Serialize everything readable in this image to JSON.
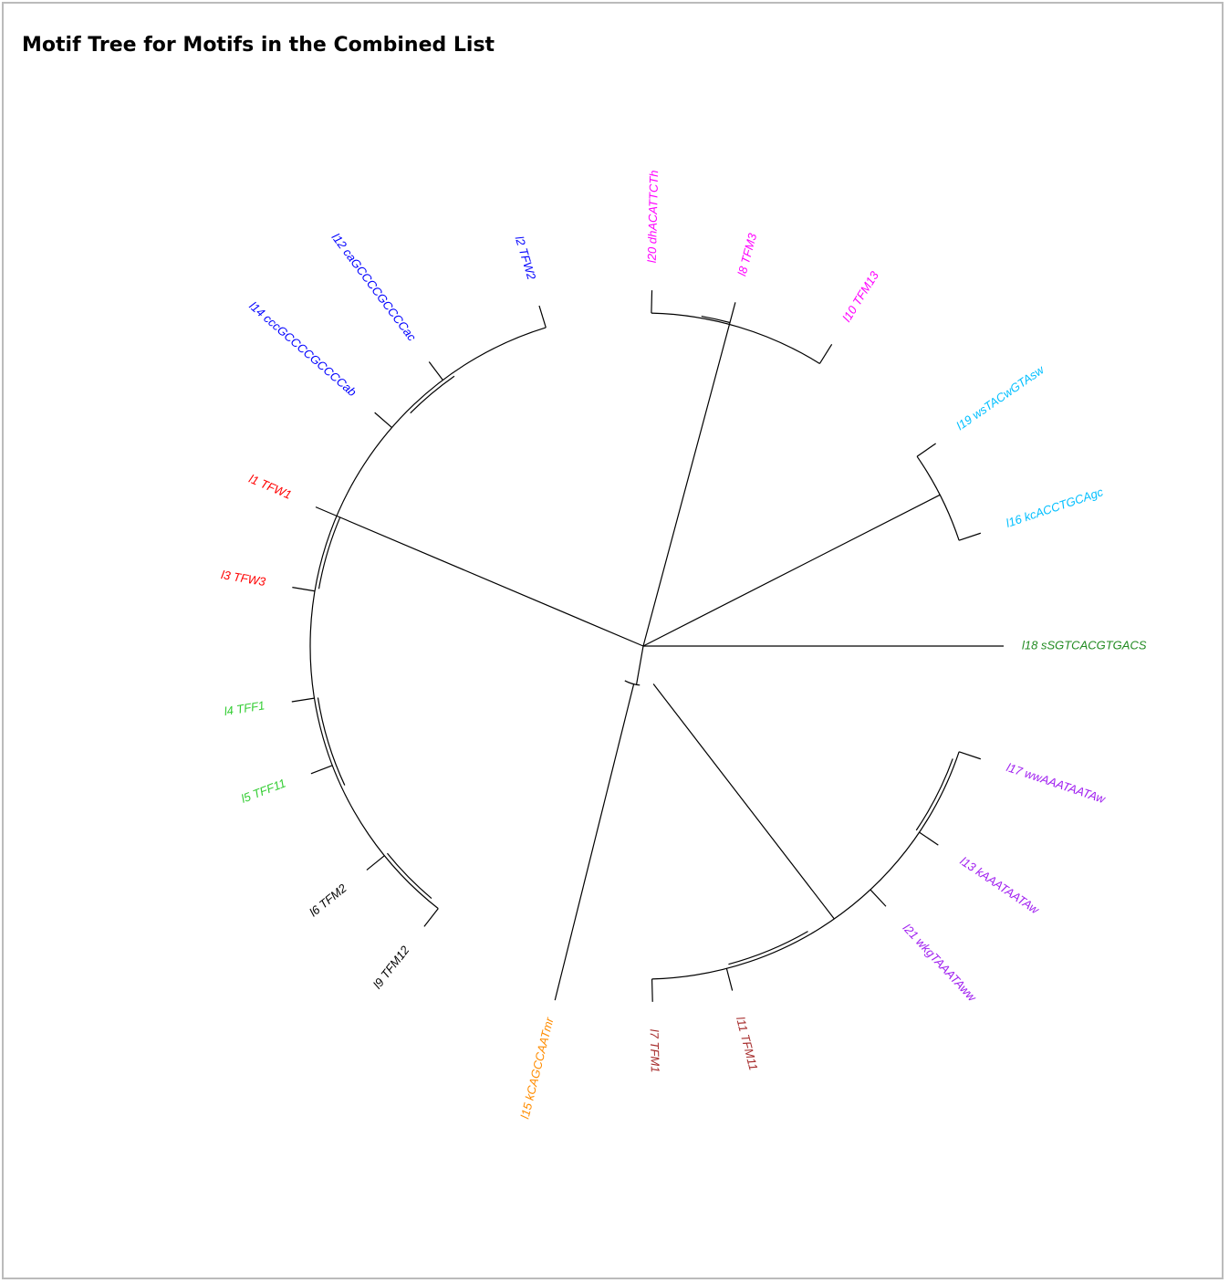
{
  "page": {
    "title": "Motif Tree for Motifs in the Combined List"
  },
  "tree": {
    "branch_color": "#000000",
    "groups": [
      {
        "id": "g1",
        "color": "#ff00ff",
        "leaves": [
          {
            "id": "l20",
            "label": "l20 dhACATTCTh"
          },
          {
            "id": "l8",
            "label": "l8 TFM3"
          },
          {
            "id": "l10",
            "label": "l10 TFM13"
          }
        ]
      },
      {
        "id": "g2",
        "color": "#00bfff",
        "leaves": [
          {
            "id": "l19",
            "label": "l19 wsTACwGTAsw"
          },
          {
            "id": "l16",
            "label": "l16 kcACCTGCAgc"
          }
        ]
      },
      {
        "id": "g3",
        "color": "#228b22",
        "leaves": [
          {
            "id": "l18",
            "label": "l18 sSGTCACGTGACS"
          }
        ]
      },
      {
        "id": "g4",
        "color": "#a020f0",
        "leaves": [
          {
            "id": "l17",
            "label": "l17 wwAAATAATAw"
          },
          {
            "id": "l13",
            "label": "l13 kAAATAATAw"
          },
          {
            "id": "l21",
            "label": "l21 wkgTAAATAww"
          }
        ]
      },
      {
        "id": "g5",
        "color": "#a52a2a",
        "leaves": [
          {
            "id": "l11",
            "label": "l11 TFM11"
          },
          {
            "id": "l7",
            "label": "l7 TFM1"
          }
        ]
      },
      {
        "id": "g6",
        "color": "#ff8c00",
        "leaves": [
          {
            "id": "l15",
            "label": "l15 kCAGCCAATmr"
          }
        ]
      },
      {
        "id": "g7",
        "color": "#000000",
        "leaves": [
          {
            "id": "l9",
            "label": "l9 TFM12"
          },
          {
            "id": "l6",
            "label": "l6 TFM2"
          }
        ]
      },
      {
        "id": "g8",
        "color": "#32cd32",
        "leaves": [
          {
            "id": "l5",
            "label": "l5 TFF11"
          },
          {
            "id": "l4",
            "label": "l4 TFF1"
          }
        ]
      },
      {
        "id": "g9",
        "color": "#ff0000",
        "leaves": [
          {
            "id": "l3",
            "label": "l3 TFW3"
          },
          {
            "id": "l1",
            "label": "l1 TFW1"
          }
        ]
      },
      {
        "id": "g10",
        "color": "#0000ff",
        "leaves": [
          {
            "id": "l14",
            "label": "l14 cccGCCCCGCCCCab"
          },
          {
            "id": "l12",
            "label": "l12 caGCCCCGCCCCac"
          },
          {
            "id": "l2",
            "label": "l2 TFW2"
          }
        ]
      }
    ]
  }
}
